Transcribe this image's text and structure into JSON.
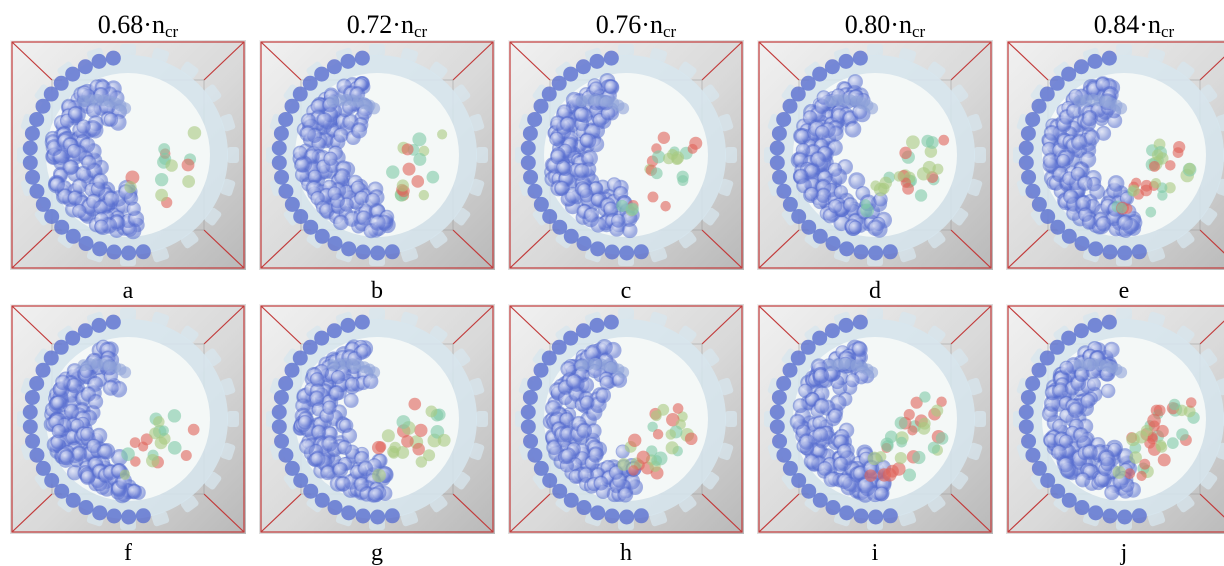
{
  "columns": [
    {
      "value": "0.68",
      "symbol": "n",
      "subscript": "cr"
    },
    {
      "value": "0.72",
      "symbol": "n",
      "subscript": "cr"
    },
    {
      "value": "0.76",
      "symbol": "n",
      "subscript": "cr"
    },
    {
      "value": "0.80",
      "symbol": "n",
      "subscript": "cr"
    },
    {
      "value": "0.84",
      "symbol": "n",
      "subscript": "cr"
    }
  ],
  "multiplication_sign": "·",
  "panels": [
    {
      "label": "a",
      "speed_fraction": 0.68,
      "row": 1,
      "column": 1
    },
    {
      "label": "b",
      "speed_fraction": 0.72,
      "row": 1,
      "column": 2
    },
    {
      "label": "c",
      "speed_fraction": 0.76,
      "row": 1,
      "column": 3
    },
    {
      "label": "d",
      "speed_fraction": 0.8,
      "row": 1,
      "column": 4
    },
    {
      "label": "e",
      "speed_fraction": 0.84,
      "row": 1,
      "column": 5
    },
    {
      "label": "f",
      "speed_fraction": 0.68,
      "row": 2,
      "column": 1
    },
    {
      "label": "g",
      "speed_fraction": 0.72,
      "row": 2,
      "column": 2
    },
    {
      "label": "h",
      "speed_fraction": 0.76,
      "row": 2,
      "column": 3
    },
    {
      "label": "i",
      "speed_fraction": 0.8,
      "row": 2,
      "column": 4
    },
    {
      "label": "j",
      "speed_fraction": 0.84,
      "row": 2,
      "column": 5
    }
  ],
  "colors": {
    "frame_edge": "#c23a3a",
    "ball_base": "#5a6fd0",
    "ball_mid": "#7fc9a6",
    "ball_hot": "#e0645a",
    "drum_fill": "#d7e6ee",
    "drum_inner": "#f5f9f8"
  }
}
